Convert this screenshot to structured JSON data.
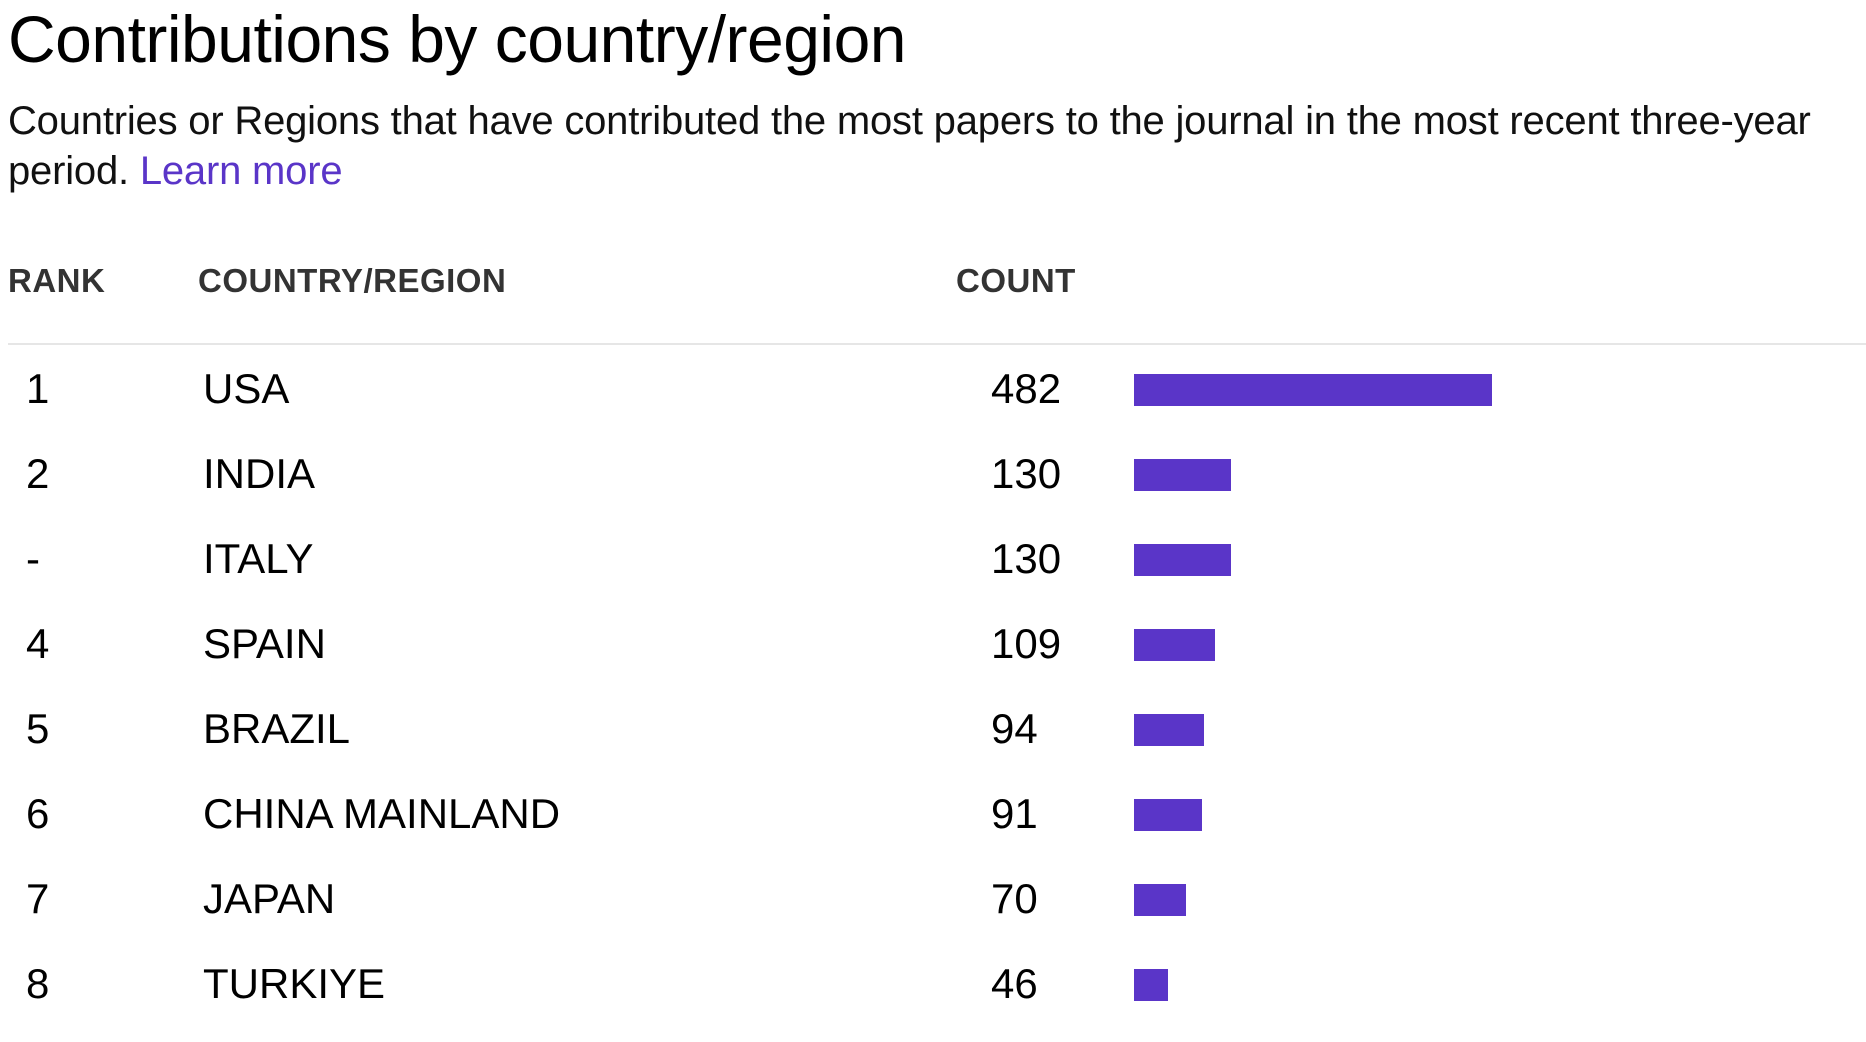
{
  "accent_color": "#5a35c8",
  "header": {
    "title": "Contributions by country/region",
    "description": "Countries or Regions that have contributed the most papers to the journal in the most recent three-year period.",
    "learn_more": "Learn more"
  },
  "table": {
    "columns": {
      "rank": "RANK",
      "country": "COUNTRY/REGION",
      "count": "COUNT"
    }
  },
  "chart_data": {
    "type": "bar",
    "orientation": "horizontal",
    "categories": [
      "USA",
      "INDIA",
      "ITALY",
      "SPAIN",
      "BRAZIL",
      "CHINA MAINLAND",
      "JAPAN",
      "TURKIYE"
    ],
    "ranks": [
      "1",
      "2",
      "-",
      "4",
      "5",
      "6",
      "7",
      "8"
    ],
    "values": [
      482,
      130,
      130,
      109,
      94,
      91,
      70,
      46
    ],
    "bar_color": "#5a35c8"
  }
}
